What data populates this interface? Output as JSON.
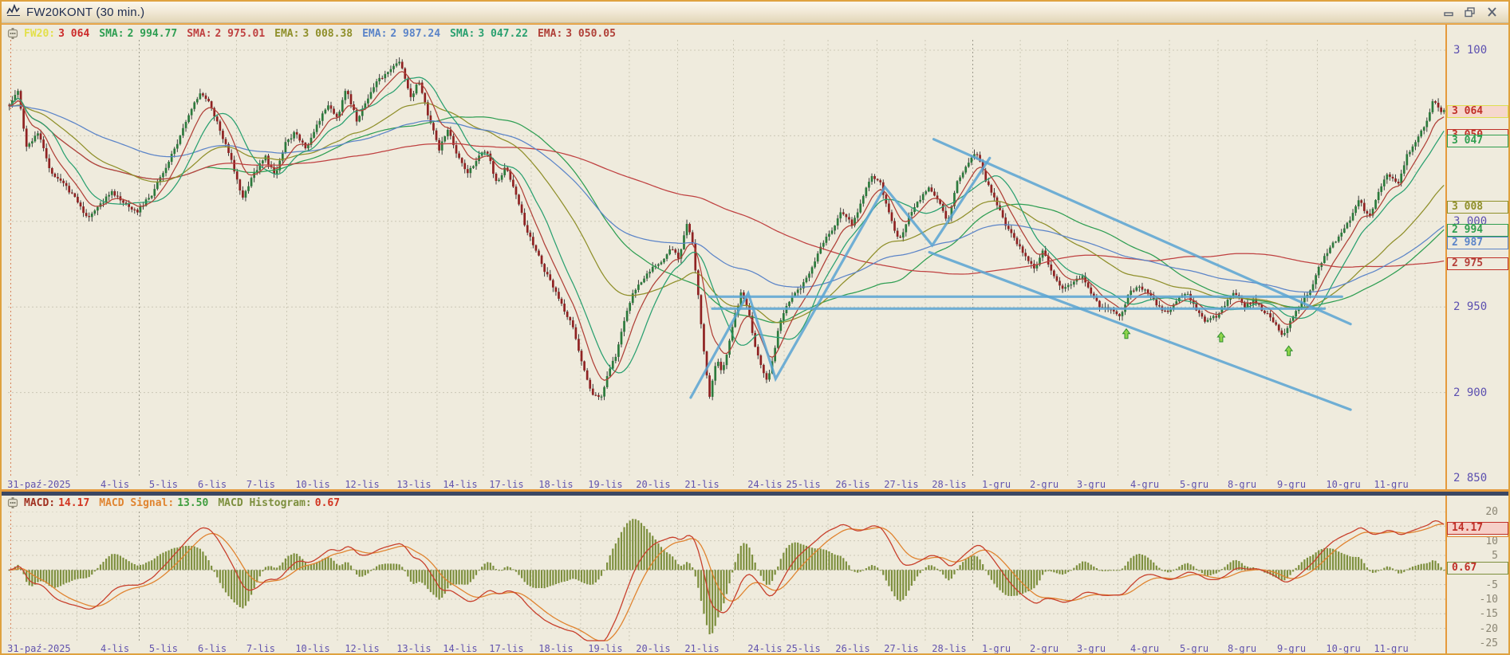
{
  "window": {
    "title": "FW20KONT (30 min.)",
    "controls": [
      {
        "name": "minimize"
      },
      {
        "name": "restore"
      },
      {
        "name": "close"
      }
    ]
  },
  "colors": {
    "bg": "#efebdd",
    "frame_orange": "#e59a3c",
    "grid": "#ccc8b6",
    "grid_dark": "#9d9a8c",
    "axis_tick": "#5c50b0",
    "macd_tick": "#8b8674",
    "date_label": "#6253ad",
    "candle_up": "#2c7a3c",
    "candle_down": "#8f2222",
    "wick": "#2a2a2a",
    "splitter_navy": "#3a4763",
    "session_line": "#cc5522",
    "overlay_blue": "#58a3d2",
    "arrow_fill": "#8fd44a",
    "arrow_stroke": "#2f8f2f",
    "macd_line": "#c8402c",
    "signal_line": "#e08430",
    "histogram": "#7d8f3e"
  },
  "main_pane": {
    "indicators": [
      {
        "label": "FW20:",
        "label_color": "#e3e04a",
        "value": "3 064",
        "value_color": "#cc2a2a"
      },
      {
        "label": "SMA:",
        "label_color": "#2e9e52",
        "value": "2 994.77",
        "value_color": "#2e9e52"
      },
      {
        "label": "SMA:",
        "label_color": "#bf4040",
        "value": "2 975.01",
        "value_color": "#bf4040"
      },
      {
        "label": "EMA:",
        "label_color": "#8f8f2a",
        "value": "3 008.38",
        "value_color": "#8f8f2a"
      },
      {
        "label": "EMA:",
        "label_color": "#5b84c8",
        "value": "2 987.24",
        "value_color": "#5b84c8"
      },
      {
        "label": "SMA:",
        "label_color": "#2aa070",
        "value": "3 047.22",
        "value_color": "#2aa070"
      },
      {
        "label": "EMA:",
        "label_color": "#b04038",
        "value": "3 050.05",
        "value_color": "#b04038"
      }
    ],
    "y_ticks": [
      {
        "label": "3 100",
        "price": 3100
      },
      {
        "label": "3 000",
        "price": 3000
      },
      {
        "label": "2 950",
        "price": 2950
      },
      {
        "label": "2 900",
        "price": 2900
      },
      {
        "label": "2 850",
        "price": 2850
      }
    ],
    "gridline_prices": [
      3100,
      3050,
      3000,
      2950,
      2900,
      2850
    ],
    "price_boxes": [
      {
        "label": "3 050",
        "price": 3050,
        "border": "#c03028",
        "bg": "#efebdd",
        "text": "#c03028",
        "z": 3
      },
      {
        "label": "3 047",
        "price": 3047,
        "border": "#2f9e4f",
        "bg": "#efebdd",
        "text": "#2f9e4f",
        "z": 4
      },
      {
        "label": "3 064",
        "price": 3064,
        "border": "#dede50",
        "bg": "#f6d7cd",
        "text": "#c03028",
        "z": 5
      },
      {
        "label": "3 008",
        "price": 3008.38,
        "border": "#8f8f2a",
        "bg": "#efebdd",
        "text": "#8f8f2a",
        "z": 3
      },
      {
        "label": "2 994",
        "price": 2994.77,
        "border": "#2f9e4f",
        "bg": "#efebdd",
        "text": "#2f9e4f",
        "z": 3
      },
      {
        "label": "2 987",
        "price": 2987.24,
        "border": "#5b84c8",
        "bg": "#efebdd",
        "text": "#5b84c8",
        "z": 3
      },
      {
        "label": "2 975",
        "price": 2975.01,
        "border": "#c03028",
        "bg": "#efebdd",
        "text": "#b5403a",
        "z": 3
      }
    ]
  },
  "macd_pane": {
    "indicators": [
      {
        "label": "MACD:",
        "label_color": "#a03020",
        "value": "14.17",
        "value_color": "#d23420"
      },
      {
        "label": "MACD Signal:",
        "label_color": "#e08430",
        "value": "13.50",
        "value_color": "#3f9e3f"
      },
      {
        "label": "MACD Histogram:",
        "label_color": "#7d8f3e",
        "value": "0.67",
        "value_color": "#d23420"
      }
    ],
    "y_ticks": [
      {
        "label": "20",
        "v": 20
      },
      {
        "label": "10",
        "v": 10
      },
      {
        "label": "5",
        "v": 5
      },
      {
        "label": "0",
        "v": 0
      },
      {
        "label": "-5",
        "v": -5
      },
      {
        "label": "-10",
        "v": -10
      },
      {
        "label": "-15",
        "v": -15
      },
      {
        "label": "-20",
        "v": -20
      },
      {
        "label": "-25",
        "v": -25
      }
    ],
    "gridline_values": [
      20,
      15,
      10,
      5,
      0,
      -5,
      -10,
      -15,
      -20,
      -25
    ],
    "value_boxes": [
      {
        "label": "13.50",
        "v": 13.5,
        "border": "#e08430",
        "bg": "#efebdd",
        "text": "#e08430",
        "z": 3
      },
      {
        "label": "14.17",
        "v": 14.17,
        "border": "#c03028",
        "bg": "#f6d0c8",
        "text": "#c03028",
        "z": 4
      },
      {
        "label": "0.67",
        "v": 0.67,
        "border": "#7d8f3e",
        "bg": "#efebdd",
        "text": "#c03028",
        "z": 3
      }
    ]
  },
  "chart_data": {
    "type": "candlestick",
    "symbol": "FW20KONT",
    "interval": "30 min.",
    "last_price": 3064,
    "y_axis": {
      "visible_range": [
        2850,
        3104
      ],
      "ticks": [
        3100,
        3000,
        2950,
        2900,
        2850
      ]
    },
    "x_labels": [
      {
        "label": "31-paź-2025",
        "x": 0.0216
      },
      {
        "label": "4-lis",
        "x": 0.0744
      },
      {
        "label": "5-lis",
        "x": 0.1082
      },
      {
        "label": "6-lis",
        "x": 0.1421
      },
      {
        "label": "7-lis",
        "x": 0.1759
      },
      {
        "label": "10-lis",
        "x": 0.212
      },
      {
        "label": "12-lis",
        "x": 0.2464
      },
      {
        "label": "13-lis",
        "x": 0.2824
      },
      {
        "label": "14-lis",
        "x": 0.3146
      },
      {
        "label": "17-lis",
        "x": 0.3468
      },
      {
        "label": "18-lis",
        "x": 0.3812
      },
      {
        "label": "19-lis",
        "x": 0.4156
      },
      {
        "label": "20-lis",
        "x": 0.4489
      },
      {
        "label": "21-lis",
        "x": 0.4828
      },
      {
        "label": "24-lis",
        "x": 0.5266
      },
      {
        "label": "25-lis",
        "x": 0.5533
      },
      {
        "label": "26-lis",
        "x": 0.5877
      },
      {
        "label": "27-lis",
        "x": 0.6215
      },
      {
        "label": "28-lis",
        "x": 0.6548
      },
      {
        "label": "1-gru",
        "x": 0.6876
      },
      {
        "label": "2-gru",
        "x": 0.7209
      },
      {
        "label": "3-gru",
        "x": 0.7536
      },
      {
        "label": "4-gru",
        "x": 0.7908
      },
      {
        "label": "5-gru",
        "x": 0.8252
      },
      {
        "label": "8-gru",
        "x": 0.8585
      },
      {
        "label": "9-gru",
        "x": 0.8929
      },
      {
        "label": "10-gru",
        "x": 0.929
      },
      {
        "label": "11-gru",
        "x": 0.9623
      }
    ],
    "price_path": [
      [
        0.001,
        3068
      ],
      [
        0.007,
        3076
      ],
      [
        0.013,
        3044
      ],
      [
        0.021,
        3052
      ],
      [
        0.029,
        3030
      ],
      [
        0.038,
        3022
      ],
      [
        0.047,
        3014
      ],
      [
        0.054,
        3002
      ],
      [
        0.063,
        3008
      ],
      [
        0.072,
        3018
      ],
      [
        0.081,
        3010
      ],
      [
        0.09,
        3006
      ],
      [
        0.1,
        3016
      ],
      [
        0.109,
        3030
      ],
      [
        0.118,
        3046
      ],
      [
        0.127,
        3064
      ],
      [
        0.134,
        3076
      ],
      [
        0.141,
        3068
      ],
      [
        0.149,
        3050
      ],
      [
        0.156,
        3034
      ],
      [
        0.163,
        3014
      ],
      [
        0.171,
        3028
      ],
      [
        0.179,
        3038
      ],
      [
        0.186,
        3026
      ],
      [
        0.193,
        3046
      ],
      [
        0.2,
        3052
      ],
      [
        0.208,
        3042
      ],
      [
        0.215,
        3056
      ],
      [
        0.222,
        3068
      ],
      [
        0.229,
        3060
      ],
      [
        0.235,
        3078
      ],
      [
        0.243,
        3058
      ],
      [
        0.25,
        3072
      ],
      [
        0.257,
        3082
      ],
      [
        0.265,
        3088
      ],
      [
        0.273,
        3094
      ],
      [
        0.28,
        3072
      ],
      [
        0.286,
        3082
      ],
      [
        0.293,
        3060
      ],
      [
        0.3,
        3042
      ],
      [
        0.306,
        3054
      ],
      [
        0.313,
        3038
      ],
      [
        0.32,
        3028
      ],
      [
        0.326,
        3036
      ],
      [
        0.333,
        3042
      ],
      [
        0.34,
        3022
      ],
      [
        0.346,
        3032
      ],
      [
        0.353,
        3018
      ],
      [
        0.36,
        2996
      ],
      [
        0.366,
        2986
      ],
      [
        0.373,
        2972
      ],
      [
        0.38,
        2960
      ],
      [
        0.386,
        2950
      ],
      [
        0.393,
        2938
      ],
      [
        0.4,
        2916
      ],
      [
        0.406,
        2900
      ],
      [
        0.412,
        2896
      ],
      [
        0.417,
        2910
      ],
      [
        0.423,
        2922
      ],
      [
        0.428,
        2940
      ],
      [
        0.434,
        2956
      ],
      [
        0.441,
        2966
      ],
      [
        0.447,
        2972
      ],
      [
        0.454,
        2976
      ],
      [
        0.461,
        2984
      ],
      [
        0.467,
        2978
      ],
      [
        0.472,
        3000
      ],
      [
        0.476,
        2988
      ],
      [
        0.481,
        2950
      ],
      [
        0.485,
        2916
      ],
      [
        0.488,
        2898
      ],
      [
        0.493,
        2920
      ],
      [
        0.497,
        2912
      ],
      [
        0.502,
        2930
      ],
      [
        0.506,
        2946
      ],
      [
        0.51,
        2958
      ],
      [
        0.515,
        2950
      ],
      [
        0.519,
        2930
      ],
      [
        0.524,
        2916
      ],
      [
        0.528,
        2906
      ],
      [
        0.533,
        2924
      ],
      [
        0.537,
        2942
      ],
      [
        0.542,
        2952
      ],
      [
        0.547,
        2958
      ],
      [
        0.554,
        2964
      ],
      [
        0.561,
        2976
      ],
      [
        0.567,
        2988
      ],
      [
        0.574,
        2996
      ],
      [
        0.58,
        3006
      ],
      [
        0.587,
        2998
      ],
      [
        0.594,
        3012
      ],
      [
        0.6,
        3026
      ],
      [
        0.607,
        3022
      ],
      [
        0.614,
        3002
      ],
      [
        0.62,
        2988
      ],
      [
        0.627,
        3004
      ],
      [
        0.634,
        3012
      ],
      [
        0.64,
        3020
      ],
      [
        0.647,
        3012
      ],
      [
        0.654,
        3000
      ],
      [
        0.66,
        3022
      ],
      [
        0.667,
        3034
      ],
      [
        0.674,
        3040
      ],
      [
        0.68,
        3024
      ],
      [
        0.687,
        3012
      ],
      [
        0.694,
        2998
      ],
      [
        0.7,
        2990
      ],
      [
        0.707,
        2980
      ],
      [
        0.714,
        2972
      ],
      [
        0.72,
        2984
      ],
      [
        0.727,
        2968
      ],
      [
        0.734,
        2960
      ],
      [
        0.74,
        2964
      ],
      [
        0.747,
        2968
      ],
      [
        0.754,
        2958
      ],
      [
        0.76,
        2950
      ],
      [
        0.767,
        2948
      ],
      [
        0.774,
        2944
      ],
      [
        0.78,
        2958
      ],
      [
        0.787,
        2962
      ],
      [
        0.793,
        2958
      ],
      [
        0.8,
        2950
      ],
      [
        0.807,
        2946
      ],
      [
        0.813,
        2954
      ],
      [
        0.82,
        2958
      ],
      [
        0.827,
        2948
      ],
      [
        0.833,
        2942
      ],
      [
        0.84,
        2944
      ],
      [
        0.847,
        2952
      ],
      [
        0.853,
        2958
      ],
      [
        0.86,
        2950
      ],
      [
        0.867,
        2954
      ],
      [
        0.873,
        2948
      ],
      [
        0.88,
        2942
      ],
      [
        0.887,
        2932
      ],
      [
        0.893,
        2944
      ],
      [
        0.9,
        2952
      ],
      [
        0.907,
        2962
      ],
      [
        0.913,
        2975
      ],
      [
        0.92,
        2985
      ],
      [
        0.927,
        2992
      ],
      [
        0.933,
        3000
      ],
      [
        0.94,
        3012
      ],
      [
        0.947,
        3002
      ],
      [
        0.953,
        3016
      ],
      [
        0.96,
        3028
      ],
      [
        0.967,
        3022
      ],
      [
        0.973,
        3038
      ],
      [
        0.98,
        3048
      ],
      [
        0.986,
        3056
      ],
      [
        0.991,
        3070
      ],
      [
        0.998,
        3064
      ]
    ],
    "overlays": [
      {
        "type": "SMA",
        "value": 2994.77,
        "color": "#2e9e52"
      },
      {
        "type": "SMA",
        "value": 2975.01,
        "color": "#bf4040"
      },
      {
        "type": "EMA",
        "value": 3008.38,
        "color": "#8f8f2a"
      },
      {
        "type": "EMA",
        "value": 2987.24,
        "color": "#5b84c8"
      },
      {
        "type": "SMA",
        "value": 3047.22,
        "color": "#2aa070"
      },
      {
        "type": "EMA",
        "value": 3050.05,
        "color": "#b04038"
      }
    ],
    "macd": {
      "macd": 14.17,
      "signal": 13.5,
      "histogram": 0.67,
      "axis_range": [
        -25,
        20
      ]
    },
    "drawings": [
      {
        "type": "polyline",
        "points": [
          [
            0.475,
            2897
          ],
          [
            0.515,
            2958
          ],
          [
            0.534,
            2908
          ],
          [
            0.61,
            3020
          ],
          [
            0.643,
            2986
          ],
          [
            0.683,
            3037
          ]
        ]
      },
      {
        "type": "segment",
        "points": [
          [
            0.488,
            2956
          ],
          [
            0.928,
            2956
          ]
        ]
      },
      {
        "type": "segment",
        "points": [
          [
            0.49,
            2949
          ],
          [
            0.916,
            2949
          ]
        ]
      },
      {
        "type": "segment",
        "points": [
          [
            0.644,
            3048
          ],
          [
            0.934,
            2940
          ]
        ]
      },
      {
        "type": "segment",
        "points": [
          [
            0.641,
            2982
          ],
          [
            0.934,
            2890
          ]
        ]
      }
    ],
    "signals": [
      {
        "type": "up-arrow",
        "x": 0.778,
        "price": 2940
      },
      {
        "type": "up-arrow",
        "x": 0.844,
        "price": 2938
      },
      {
        "type": "up-arrow",
        "x": 0.891,
        "price": 2930
      }
    ]
  }
}
